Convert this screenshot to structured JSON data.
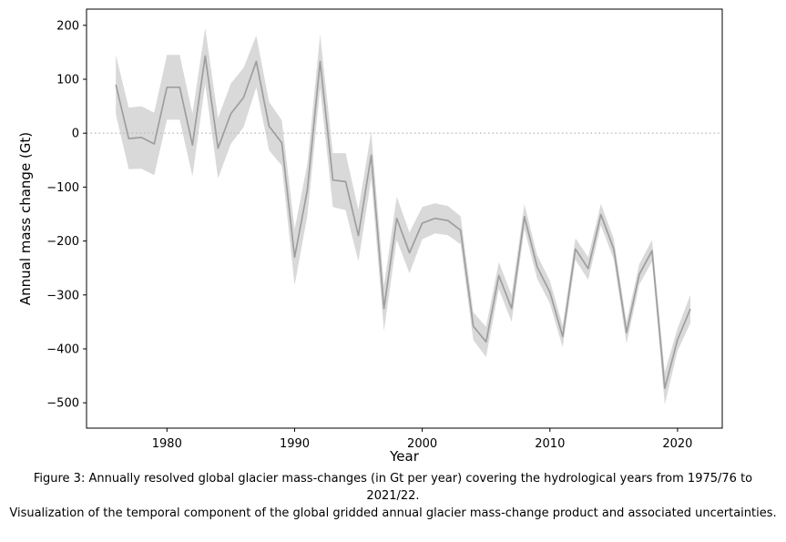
{
  "figure": {
    "caption_line1": "Figure 3: Annually resolved global glacier mass-changes (in Gt per year) covering the hydrological years from 1975/76 to 2021/22.",
    "caption_line2": "Visualization of the temporal component of the global gridded annual glacier mass-change product and associated uncertainties."
  },
  "colors": {
    "line": "#9e9e9e",
    "band": "#d9d9d9",
    "zero_line": "#bdbdbd",
    "spine": "#000000",
    "tick": "#000000"
  },
  "chart_data": {
    "type": "line",
    "title": "",
    "xlabel": "Year",
    "ylabel": "Annual mass change (Gt)",
    "grid": false,
    "legend": false,
    "zero_line_value": 0,
    "zero_line_style": "dotted",
    "band_meaning": "uncertainty envelope around annual mass change",
    "x": [
      1976,
      1977,
      1978,
      1979,
      1980,
      1981,
      1982,
      1983,
      1984,
      1985,
      1986,
      1987,
      1988,
      1989,
      1990,
      1991,
      1992,
      1993,
      1994,
      1995,
      1996,
      1997,
      1998,
      1999,
      2000,
      2001,
      2002,
      2003,
      2004,
      2005,
      2006,
      2007,
      2008,
      2009,
      2010,
      2011,
      2012,
      2013,
      2014,
      2015,
      2016,
      2017,
      2018,
      2019,
      2020,
      2021
    ],
    "series": [
      {
        "name": "Annual glacier mass change (Gt)",
        "values": [
          90,
          -10,
          -8,
          -20,
          85,
          85,
          -22,
          143,
          -28,
          36,
          66,
          133,
          13,
          -18,
          -230,
          -105,
          133,
          -87,
          -90,
          -190,
          -41,
          -325,
          -158,
          -222,
          -167,
          -158,
          -162,
          -180,
          -358,
          -387,
          -264,
          -325,
          -155,
          -248,
          -295,
          -377,
          -215,
          -251,
          -151,
          -215,
          -370,
          -262,
          -218,
          -473,
          -383,
          -326
        ]
      }
    ],
    "uncertainty": [
      55,
      57,
      58,
      58,
      60,
      60,
      58,
      52,
      56,
      56,
      55,
      48,
      45,
      42,
      52,
      48,
      50,
      50,
      53,
      48,
      44,
      42,
      40,
      38,
      30,
      28,
      27,
      26,
      26,
      28,
      25,
      25,
      23,
      22,
      21,
      20,
      20,
      21,
      20,
      19,
      20,
      19,
      20,
      30,
      21,
      26
    ],
    "xticks": [
      1980,
      1990,
      2000,
      2010,
      2020
    ],
    "yticks": [
      200,
      100,
      0,
      -100,
      -200,
      -300,
      -400,
      -500
    ],
    "xlim": [
      1973.7,
      2023.5
    ],
    "ylim": [
      -547,
      230
    ]
  }
}
